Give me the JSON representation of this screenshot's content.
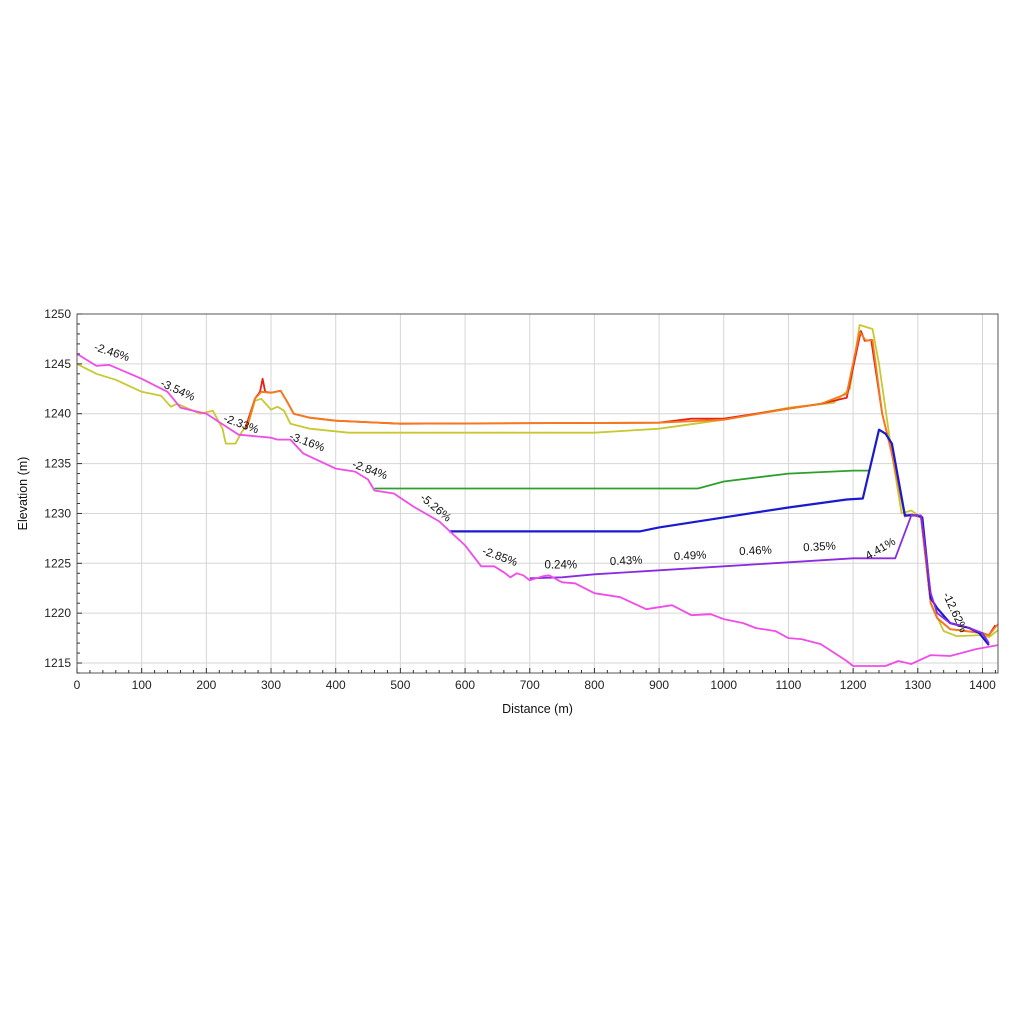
{
  "chart_data": {
    "type": "line",
    "title": "",
    "xlabel": "Distance (m)",
    "ylabel": "Elevation (m)",
    "xlim": [
      0,
      1424
    ],
    "ylim": [
      1214,
      1250
    ],
    "xticks": [
      0,
      100,
      200,
      300,
      400,
      500,
      600,
      700,
      800,
      900,
      1000,
      1100,
      1200,
      1300,
      1400
    ],
    "yticks": [
      1215,
      1220,
      1225,
      1230,
      1235,
      1240,
      1245,
      1250
    ],
    "grid": true,
    "legend": "none",
    "series": [
      {
        "color": "#c8c832",
        "points": [
          [
            0,
            1245
          ],
          [
            30,
            1244
          ],
          [
            60,
            1243.4
          ],
          [
            100,
            1242.2
          ],
          [
            130,
            1241.8
          ],
          [
            145,
            1240.7
          ],
          [
            155,
            1241
          ],
          [
            190,
            1240
          ],
          [
            210,
            1240.3
          ],
          [
            225,
            1238.5
          ],
          [
            230,
            1237
          ],
          [
            245,
            1237
          ],
          [
            255,
            1238.2
          ],
          [
            265,
            1239
          ],
          [
            275,
            1241.3
          ],
          [
            285,
            1241.5
          ],
          [
            300,
            1240.4
          ],
          [
            310,
            1240.7
          ],
          [
            320,
            1240.3
          ],
          [
            330,
            1239
          ],
          [
            360,
            1238.5
          ],
          [
            420,
            1238.1
          ],
          [
            800,
            1238.1
          ],
          [
            900,
            1238.5
          ],
          [
            1000,
            1239.4
          ],
          [
            1100,
            1240.6
          ],
          [
            1170,
            1241.1
          ],
          [
            1195,
            1242.5
          ],
          [
            1210,
            1248.9
          ],
          [
            1220,
            1248.7
          ],
          [
            1230,
            1248.5
          ],
          [
            1240,
            1245
          ],
          [
            1260,
            1236
          ],
          [
            1275,
            1230
          ],
          [
            1290,
            1230.3
          ],
          [
            1305,
            1229.6
          ],
          [
            1320,
            1221
          ],
          [
            1340,
            1218.2
          ],
          [
            1360,
            1217.7
          ],
          [
            1400,
            1217.8
          ],
          [
            1410,
            1217.6
          ],
          [
            1424,
            1218.3
          ]
        ]
      },
      {
        "color": "#e8201c",
        "points": [
          [
            260,
            1238.5
          ],
          [
            275,
            1241.5
          ],
          [
            283,
            1242.2
          ],
          [
            287,
            1243.5
          ],
          [
            291,
            1242.2
          ],
          [
            300,
            1242.1
          ],
          [
            315,
            1242.3
          ],
          [
            325,
            1241.2
          ],
          [
            335,
            1240
          ],
          [
            360,
            1239.6
          ],
          [
            400,
            1239.3
          ],
          [
            500,
            1239
          ],
          [
            900,
            1239.1
          ],
          [
            950,
            1239.5
          ],
          [
            1000,
            1239.5
          ],
          [
            1100,
            1240.5
          ],
          [
            1150,
            1241
          ],
          [
            1190,
            1241.6
          ],
          [
            1212,
            1248.3
          ],
          [
            1218,
            1247.3
          ],
          [
            1228,
            1247.4
          ],
          [
            1245,
            1240
          ],
          [
            1260,
            1236
          ],
          [
            1280,
            1229.7
          ],
          [
            1290,
            1229.9
          ],
          [
            1305,
            1229.6
          ],
          [
            1320,
            1221
          ],
          [
            1330,
            1219.5
          ],
          [
            1350,
            1218.4
          ],
          [
            1400,
            1218
          ],
          [
            1410,
            1217.8
          ],
          [
            1420,
            1218.8
          ]
        ]
      },
      {
        "color": "#f47a1c",
        "points": [
          [
            262,
            1238.5
          ],
          [
            275,
            1241.5
          ],
          [
            285,
            1242.2
          ],
          [
            300,
            1242.1
          ],
          [
            315,
            1242.3
          ],
          [
            325,
            1241.2
          ],
          [
            335,
            1240
          ],
          [
            360,
            1239.6
          ],
          [
            400,
            1239.3
          ],
          [
            500,
            1239
          ],
          [
            900,
            1239.1
          ],
          [
            1000,
            1239.4
          ],
          [
            1100,
            1240.5
          ],
          [
            1150,
            1241
          ],
          [
            1190,
            1242
          ],
          [
            1210,
            1248.2
          ],
          [
            1220,
            1247.3
          ],
          [
            1230,
            1247.4
          ],
          [
            1245,
            1240
          ],
          [
            1260,
            1236
          ],
          [
            1280,
            1229.7
          ],
          [
            1290,
            1229.9
          ],
          [
            1305,
            1229.6
          ],
          [
            1320,
            1221
          ],
          [
            1330,
            1219.5
          ],
          [
            1350,
            1218.4
          ],
          [
            1400,
            1218
          ],
          [
            1410,
            1217.8
          ],
          [
            1424,
            1218.9
          ]
        ]
      },
      {
        "color": "#2ca02c",
        "points": [
          [
            460,
            1232.5
          ],
          [
            960,
            1232.5
          ],
          [
            1000,
            1233.2
          ],
          [
            1100,
            1234
          ],
          [
            1200,
            1234.3
          ],
          [
            1225,
            1234.3
          ],
          [
            1240,
            1238.4
          ]
        ]
      },
      {
        "color": "#1a1ad0",
        "points": [
          [
            575,
            1228.2
          ],
          [
            870,
            1228.2
          ],
          [
            900,
            1228.6
          ],
          [
            1000,
            1229.6
          ],
          [
            1100,
            1230.6
          ],
          [
            1190,
            1231.4
          ],
          [
            1215,
            1231.5
          ],
          [
            1240,
            1238.4
          ],
          [
            1250,
            1238
          ],
          [
            1260,
            1237
          ],
          [
            1280,
            1229.8
          ],
          [
            1300,
            1229.8
          ],
          [
            1307,
            1229.6
          ],
          [
            1320,
            1221.5
          ],
          [
            1330,
            1220.5
          ],
          [
            1350,
            1219
          ],
          [
            1380,
            1218.5
          ],
          [
            1395,
            1218
          ],
          [
            1410,
            1216.8
          ]
        ]
      },
      {
        "color": "#8a2be2",
        "points": [
          [
            700,
            1223.5
          ],
          [
            750,
            1223.6
          ],
          [
            800,
            1223.9
          ],
          [
            900,
            1224.3
          ],
          [
            1000,
            1224.7
          ],
          [
            1100,
            1225.1
          ],
          [
            1200,
            1225.5
          ],
          [
            1265,
            1225.5
          ],
          [
            1290,
            1229.8
          ],
          [
            1305,
            1229.8
          ],
          [
            1320,
            1222
          ],
          [
            1330,
            1220
          ],
          [
            1350,
            1219
          ],
          [
            1380,
            1218.5
          ],
          [
            1400,
            1218
          ],
          [
            1410,
            1217
          ]
        ]
      },
      {
        "color": "#f04ce8",
        "points": [
          [
            0,
            1246
          ],
          [
            30,
            1244.8
          ],
          [
            50,
            1244.9
          ],
          [
            100,
            1243.5
          ],
          [
            140,
            1242.2
          ],
          [
            160,
            1240.6
          ],
          [
            200,
            1240
          ],
          [
            250,
            1237.9
          ],
          [
            300,
            1237.6
          ],
          [
            310,
            1237.4
          ],
          [
            330,
            1237.4
          ],
          [
            350,
            1236
          ],
          [
            400,
            1234.5
          ],
          [
            430,
            1234.2
          ],
          [
            450,
            1233.4
          ],
          [
            460,
            1232.3
          ],
          [
            490,
            1232
          ],
          [
            520,
            1230.7
          ],
          [
            560,
            1229.2
          ],
          [
            580,
            1228
          ],
          [
            600,
            1226.8
          ],
          [
            625,
            1224.7
          ],
          [
            645,
            1224.7
          ],
          [
            660,
            1224.1
          ],
          [
            670,
            1223.6
          ],
          [
            680,
            1224
          ],
          [
            690,
            1223.8
          ],
          [
            700,
            1223.3
          ],
          [
            720,
            1223.7
          ],
          [
            730,
            1223.8
          ],
          [
            750,
            1223.1
          ],
          [
            770,
            1223
          ],
          [
            800,
            1222
          ],
          [
            840,
            1221.6
          ],
          [
            880,
            1220.4
          ],
          [
            920,
            1220.8
          ],
          [
            950,
            1219.8
          ],
          [
            980,
            1219.9
          ],
          [
            1000,
            1219.4
          ],
          [
            1030,
            1219
          ],
          [
            1050,
            1218.5
          ],
          [
            1080,
            1218.2
          ],
          [
            1100,
            1217.5
          ],
          [
            1120,
            1217.4
          ],
          [
            1150,
            1216.9
          ],
          [
            1190,
            1215.2
          ],
          [
            1200,
            1214.7
          ],
          [
            1250,
            1214.7
          ],
          [
            1270,
            1215.2
          ],
          [
            1290,
            1214.9
          ],
          [
            1320,
            1215.8
          ],
          [
            1350,
            1215.7
          ],
          [
            1390,
            1216.4
          ],
          [
            1424,
            1216.8
          ]
        ]
      }
    ],
    "annotations": [
      {
        "text": "-2.46%",
        "x": 54,
        "y": 1246.2
      },
      {
        "text": "-3.54%",
        "x": 156,
        "y": 1242.4
      },
      {
        "text": "-2.33%",
        "x": 254,
        "y": 1239
      },
      {
        "text": "-3.16%",
        "x": 356,
        "y": 1237.2
      },
      {
        "text": "-2.84%",
        "x": 453,
        "y": 1234.4
      },
      {
        "text": "-5.26%",
        "x": 555,
        "y": 1230.6
      },
      {
        "text": "-2.85%",
        "x": 654,
        "y": 1225.7
      },
      {
        "text": "0.24%",
        "x": 748,
        "y": 1224.9
      },
      {
        "text": "0.43%",
        "x": 849,
        "y": 1225.3
      },
      {
        "text": "0.49%",
        "x": 948,
        "y": 1225.8
      },
      {
        "text": "0.46%",
        "x": 1049,
        "y": 1226.3
      },
      {
        "text": "0.35%",
        "x": 1148,
        "y": 1226.7
      },
      {
        "text": "4.41%",
        "x": 1242,
        "y": 1226.5
      },
      {
        "text": "-12.62%",
        "x": 1358,
        "y": 1220.1
      }
    ]
  }
}
